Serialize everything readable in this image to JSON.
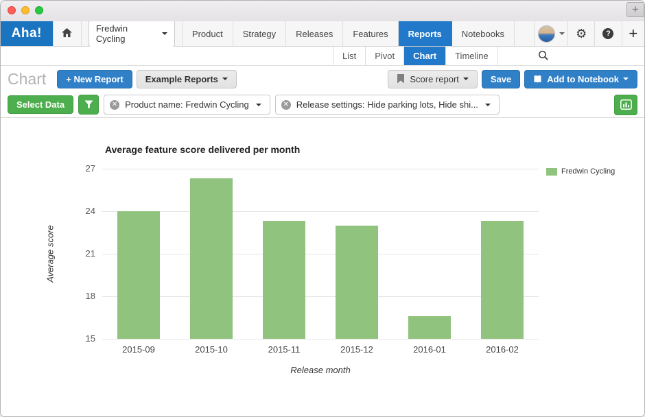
{
  "window": {
    "new_tab_label": "+"
  },
  "navbar": {
    "logo": "Aha!",
    "workspace": "Fredwin Cycling",
    "tabs": [
      "Product",
      "Strategy",
      "Releases",
      "Features",
      "Reports",
      "Notebooks"
    ],
    "active_tab": "Reports"
  },
  "subnav": {
    "tabs": [
      "List",
      "Pivot",
      "Chart",
      "Timeline"
    ],
    "active_tab": "Chart"
  },
  "report_header": {
    "page_title": "Chart",
    "new_report_label": "+ New Report",
    "example_reports_label": "Example Reports",
    "report_name_label": "Score report",
    "save_label": "Save",
    "add_to_notebook_label": "Add to Notebook"
  },
  "filter_bar": {
    "select_data_label": "Select Data",
    "filters": [
      "Product name: Fredwin Cycling",
      "Release settings: Hide parking lots, Hide shi..."
    ]
  },
  "chart_data": {
    "type": "bar",
    "title": "Average feature score delivered per month",
    "xlabel": "Release month",
    "ylabel": "Average score",
    "categories": [
      "2015-09",
      "2015-10",
      "2015-11",
      "2015-12",
      "2016-01",
      "2016-02"
    ],
    "series": [
      {
        "name": "Fredwin Cycling",
        "color": "#90c47e",
        "values": [
          24,
          26.3,
          23.3,
          23.0,
          16.6,
          23.3
        ]
      }
    ],
    "ylim": [
      15,
      27
    ],
    "yticks": [
      15,
      18,
      21,
      24,
      27
    ],
    "grid": true,
    "legend_position": "right"
  },
  "colors": {
    "logo_blue": "#1a74bf",
    "active_tab_blue": "#2279ca",
    "button_blue": "#3080c8",
    "button_green": "#4cae4c",
    "bar_green": "#90c47e"
  }
}
